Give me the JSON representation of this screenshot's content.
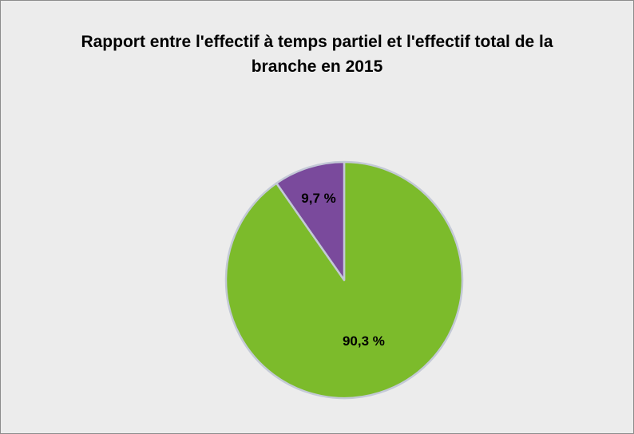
{
  "chart_data": {
    "type": "pie",
    "title": "Rapport entre l'effectif à temps partiel et l'effectif total de la branche en 2015",
    "values": [
      90.3,
      9.7
    ],
    "value_labels": [
      "90,3 %",
      "9,7 %"
    ],
    "colors": [
      "#7cbb2b",
      "#7a4a9c"
    ]
  }
}
